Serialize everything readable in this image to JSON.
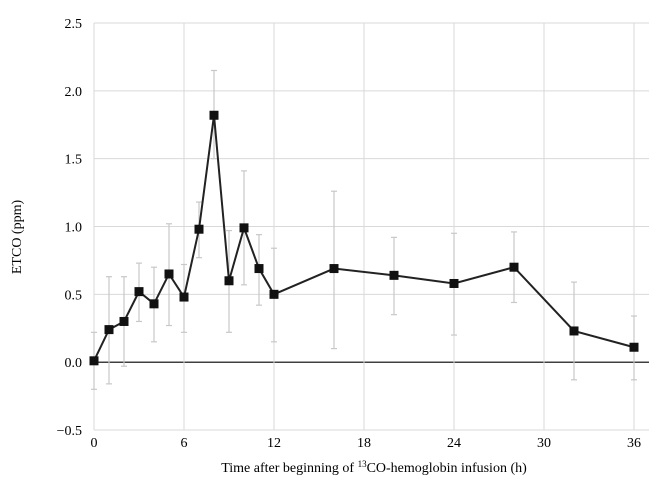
{
  "chart_data": {
    "type": "line",
    "title": "",
    "xlabel_prefix": "Time after beginning of ",
    "xlabel_sup": "13",
    "xlabel_suffix": "CO-hemoglobin infusion (h)",
    "ylabel": "ETCO (ppm)",
    "xlim": [
      0,
      37
    ],
    "ylim": [
      -0.5,
      2.5
    ],
    "xticks": [
      0,
      6,
      12,
      18,
      24,
      30,
      36
    ],
    "yticks": [
      -0.5,
      0.0,
      0.5,
      1.0,
      1.5,
      2.0,
      2.5
    ],
    "ytick_labels": [
      "−0.5",
      "0.0",
      "0.5",
      "1.0",
      "1.5",
      "2.0",
      "2.5"
    ],
    "grid": true,
    "series": [
      {
        "x": [
          0,
          1,
          2,
          3,
          4,
          5,
          6,
          7,
          8,
          9,
          10,
          11,
          12,
          16,
          20,
          24,
          28,
          32,
          36
        ],
        "y": [
          0.01,
          0.24,
          0.3,
          0.52,
          0.43,
          0.65,
          0.48,
          0.98,
          1.82,
          0.6,
          0.99,
          0.69,
          0.5,
          0.69,
          0.64,
          0.58,
          0.7,
          0.23,
          0.11
        ],
        "lo": [
          -0.2,
          -0.16,
          -0.03,
          0.3,
          0.15,
          0.27,
          0.22,
          0.77,
          1.5,
          0.22,
          0.57,
          0.42,
          0.15,
          0.1,
          0.35,
          0.2,
          0.44,
          -0.13,
          -0.13
        ],
        "hi": [
          0.22,
          0.63,
          0.63,
          0.73,
          0.7,
          1.02,
          0.72,
          1.18,
          2.15,
          0.97,
          1.41,
          0.94,
          0.84,
          1.26,
          0.92,
          0.95,
          0.96,
          0.59,
          0.34
        ]
      }
    ]
  }
}
